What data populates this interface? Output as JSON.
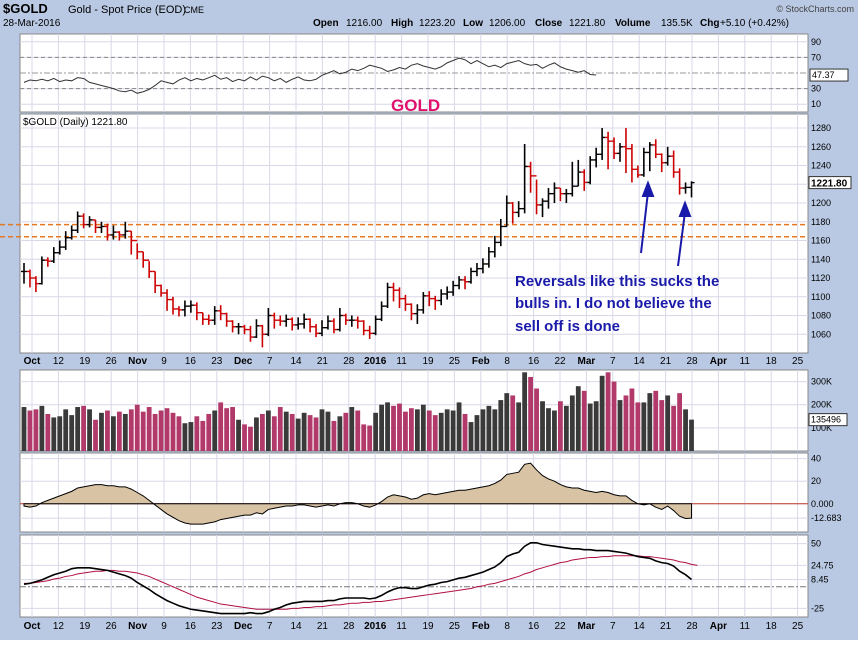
{
  "header": {
    "symbol": "$GOLD",
    "description": "Gold - Spot Price (EOD)",
    "exchange": "CME",
    "date": "28-Mar-2016",
    "watermark": "© StockCharts.com",
    "open_label": "Open",
    "open": "1216.00",
    "high_label": "High",
    "high": "1223.20",
    "low_label": "Low",
    "low": "1206.00",
    "close_label": "Close",
    "close": "1221.80",
    "volume_label": "Volume",
    "volume": "135.5K",
    "chg_label": "Chg",
    "chg": "+5.10 (+0.42%)"
  },
  "annotations": {
    "title": "GOLD",
    "note_lines": [
      "Reversals like this sucks the",
      "bulls in.  I do not believe the",
      "sell off is done"
    ]
  },
  "colors": {
    "background": "#ffffff",
    "panel_bg": "#ffffff",
    "frame_bg": "#b9c9e3",
    "grid": "#d8d8e8",
    "up": "#000000",
    "down": "#cc0000",
    "support_line": "#e87722",
    "annotation_text": "#1a1aaa",
    "title_color": "#e0106e",
    "vol_up": "#3a3a3a",
    "vol_down": "#b23a6a",
    "fill_tan": "#d9c3a5"
  },
  "chart_data": [
    {
      "id": "rsi",
      "type": "line",
      "tick_labels": [
        "90",
        "70",
        "30",
        "10"
      ],
      "ticks": [
        90,
        70,
        30,
        10
      ],
      "last_label": "47.37",
      "last": 47.37,
      "ylim": [
        0,
        100
      ],
      "levels": [
        70,
        30
      ],
      "values": [
        38,
        41,
        40,
        42,
        40,
        43,
        39,
        41,
        40,
        44,
        43,
        38,
        36,
        34,
        32,
        30,
        27,
        26,
        28,
        24,
        26,
        29,
        34,
        40,
        38,
        36,
        41,
        44,
        40,
        43,
        41,
        44,
        47,
        42,
        44,
        39,
        42,
        40,
        45,
        41,
        46,
        44,
        40,
        43,
        38,
        42,
        45,
        41,
        40,
        42,
        47,
        50,
        53,
        49,
        51,
        55,
        53,
        56,
        60,
        58,
        56,
        52,
        54,
        57,
        55,
        60,
        62,
        59,
        57,
        55,
        58,
        63,
        66,
        69,
        67,
        62,
        66,
        62,
        58,
        60,
        57,
        62,
        64,
        66,
        62,
        60,
        61,
        56,
        60,
        63,
        58,
        55,
        53,
        51,
        53,
        48,
        47.37
      ]
    },
    {
      "id": "price",
      "type": "ohlc",
      "legend": "$GOLD (Daily) 1221.80",
      "tick_labels": [
        "1280",
        "1260",
        "1240",
        "1220",
        "1200",
        "1180",
        "1160",
        "1140",
        "1120",
        "1100",
        "1080",
        "1060"
      ],
      "ticks": [
        1280,
        1260,
        1240,
        1220,
        1200,
        1180,
        1160,
        1140,
        1120,
        1100,
        1080,
        1060
      ],
      "last_label": "1221.80",
      "last": 1221.8,
      "ylim": [
        1040,
        1295
      ],
      "support_levels": [
        1177,
        1164
      ],
      "x_labels": [
        "Oct",
        "12",
        "19",
        "26",
        "Nov",
        "9",
        "16",
        "23",
        "Dec",
        "7",
        "14",
        "21",
        "28",
        "2016",
        "11",
        "19",
        "25",
        "Feb",
        "8",
        "16",
        "22",
        "Mar",
        "7",
        "14",
        "21",
        "28",
        "Apr",
        "11",
        "18",
        "25"
      ],
      "x_label_bold": [
        "Oct",
        "Nov",
        "Dec",
        "2016",
        "Feb",
        "Mar",
        "Apr"
      ],
      "close": [
        1127,
        1120,
        1114,
        1139,
        1138,
        1147,
        1153,
        1163,
        1171,
        1186,
        1177,
        1182,
        1174,
        1175,
        1166,
        1169,
        1166,
        1170,
        1160,
        1148,
        1139,
        1127,
        1112,
        1104,
        1097,
        1087,
        1086,
        1090,
        1091,
        1083,
        1076,
        1075,
        1085,
        1082,
        1074,
        1068,
        1068,
        1065,
        1057,
        1069,
        1060,
        1080,
        1075,
        1074,
        1076,
        1070,
        1071,
        1076,
        1068,
        1061,
        1067,
        1074,
        1065,
        1080,
        1075,
        1075,
        1074,
        1064,
        1061,
        1076,
        1090,
        1110,
        1107,
        1098,
        1092,
        1082,
        1086,
        1101,
        1098,
        1096,
        1103,
        1105,
        1112,
        1118,
        1116,
        1127,
        1130,
        1135,
        1148,
        1158,
        1175,
        1200,
        1190,
        1194,
        1239,
        1229,
        1198,
        1202,
        1210,
        1216,
        1210,
        1210,
        1218,
        1233,
        1222,
        1246,
        1252,
        1270,
        1266,
        1253,
        1260,
        1258,
        1236,
        1230,
        1254,
        1262,
        1252,
        1243,
        1250,
        1233,
        1216,
        1216.7,
        1221.8
      ],
      "high": [
        1136,
        1129,
        1122,
        1143,
        1142,
        1153,
        1160,
        1170,
        1176,
        1191,
        1189,
        1186,
        1182,
        1180,
        1178,
        1176,
        1170,
        1180,
        1170,
        1157,
        1148,
        1138,
        1127,
        1113,
        1108,
        1100,
        1090,
        1096,
        1096,
        1094,
        1083,
        1081,
        1090,
        1091,
        1083,
        1075,
        1072,
        1070,
        1069,
        1076,
        1070,
        1088,
        1083,
        1080,
        1081,
        1078,
        1078,
        1082,
        1077,
        1071,
        1075,
        1080,
        1077,
        1088,
        1082,
        1080,
        1079,
        1075,
        1069,
        1080,
        1095,
        1115,
        1115,
        1110,
        1102,
        1093,
        1092,
        1105,
        1106,
        1101,
        1108,
        1111,
        1117,
        1122,
        1122,
        1131,
        1136,
        1141,
        1153,
        1165,
        1183,
        1208,
        1201,
        1202,
        1263,
        1244,
        1225,
        1205,
        1216,
        1222,
        1216,
        1215,
        1244,
        1246,
        1236,
        1250,
        1259,
        1280,
        1276,
        1270,
        1264,
        1280,
        1263,
        1240,
        1259,
        1265,
        1268,
        1253,
        1260,
        1256,
        1237,
        1222,
        1223.2
      ],
      "low": [
        1114,
        1110,
        1105,
        1113,
        1132,
        1136,
        1145,
        1150,
        1161,
        1168,
        1173,
        1174,
        1168,
        1168,
        1160,
        1161,
        1160,
        1162,
        1145,
        1140,
        1131,
        1120,
        1104,
        1100,
        1085,
        1081,
        1079,
        1079,
        1083,
        1075,
        1070,
        1070,
        1070,
        1075,
        1068,
        1062,
        1060,
        1060,
        1052,
        1056,
        1046,
        1058,
        1066,
        1069,
        1068,
        1064,
        1065,
        1066,
        1062,
        1057,
        1058,
        1065,
        1061,
        1063,
        1070,
        1068,
        1066,
        1059,
        1055,
        1059,
        1074,
        1088,
        1095,
        1088,
        1085,
        1075,
        1071,
        1082,
        1090,
        1086,
        1091,
        1097,
        1101,
        1108,
        1108,
        1114,
        1122,
        1125,
        1131,
        1142,
        1154,
        1175,
        1178,
        1185,
        1189,
        1211,
        1188,
        1185,
        1194,
        1200,
        1202,
        1200,
        1207,
        1218,
        1213,
        1220,
        1238,
        1246,
        1236,
        1247,
        1244,
        1232,
        1222,
        1227,
        1228,
        1234,
        1248,
        1233,
        1240,
        1227,
        1209,
        1210,
        1206
      ]
    },
    {
      "id": "volume",
      "type": "bar",
      "tick_labels": [
        "300K",
        "200K",
        "100K"
      ],
      "ticks": [
        300,
        200,
        100
      ],
      "last_label": "135496",
      "last": 135.496,
      "ylim": [
        0,
        350
      ],
      "values": [
        190,
        175,
        180,
        195,
        160,
        145,
        150,
        180,
        155,
        190,
        195,
        180,
        135,
        165,
        175,
        150,
        170,
        160,
        180,
        200,
        170,
        190,
        160,
        175,
        185,
        165,
        150,
        120,
        125,
        150,
        130,
        160,
        175,
        210,
        185,
        190,
        135,
        115,
        105,
        145,
        160,
        175,
        150,
        190,
        170,
        160,
        140,
        165,
        155,
        145,
        180,
        170,
        130,
        150,
        165,
        190,
        175,
        115,
        110,
        165,
        200,
        210,
        195,
        205,
        170,
        185,
        180,
        200,
        175,
        155,
        165,
        180,
        175,
        210,
        160,
        125,
        155,
        180,
        195,
        180,
        220,
        250,
        240,
        210,
        340,
        320,
        270,
        215,
        185,
        175,
        215,
        195,
        240,
        280,
        260,
        205,
        215,
        325,
        340,
        300,
        220,
        240,
        270,
        210,
        210,
        250,
        260,
        220,
        240,
        195,
        250,
        180,
        135.5
      ]
    },
    {
      "id": "histogram",
      "type": "area",
      "tick_labels": [
        "40",
        "20",
        "0.000",
        "-12.683"
      ],
      "ticks": [
        40,
        20,
        0,
        -12.683
      ],
      "last_label": "-12.683",
      "last": -12.683,
      "zero_label": "0.000",
      "ylim": [
        -25,
        45
      ],
      "values": [
        -2,
        -3,
        -2,
        1,
        3,
        5,
        7,
        9,
        11,
        14,
        15,
        16,
        17,
        17,
        16,
        16,
        15,
        15,
        13,
        10,
        7,
        3,
        -1,
        -5,
        -9,
        -12,
        -15,
        -17,
        -18,
        -18,
        -18,
        -17,
        -16,
        -14,
        -13,
        -12,
        -11,
        -10,
        -10,
        -8,
        -9,
        -5,
        -4,
        -3,
        -2,
        -2,
        -1,
        -1,
        -2,
        -3,
        -2,
        -1,
        -2,
        0,
        1,
        1,
        0,
        -2,
        -3,
        -1,
        2,
        6,
        8,
        7,
        6,
        4,
        5,
        8,
        9,
        8,
        9,
        10,
        11,
        12,
        12,
        13,
        14,
        15,
        16,
        18,
        21,
        26,
        27,
        28,
        35,
        36,
        30,
        25,
        22,
        20,
        17,
        15,
        14,
        14,
        12,
        11,
        10,
        11,
        10,
        8,
        7,
        7,
        3,
        0,
        -1,
        0,
        -3,
        -5,
        -2,
        -6,
        -11,
        -13,
        -12.683
      ]
    },
    {
      "id": "macd",
      "type": "line",
      "tick_labels": [
        "50",
        "24.75",
        "8.45",
        "-25"
      ],
      "ticks": [
        50,
        24.75,
        8.45,
        -25
      ],
      "macd_label": "8.45",
      "signal_label": "24.75",
      "ylim": [
        -35,
        60
      ],
      "macd": [
        3,
        4,
        6,
        8,
        11,
        14,
        16,
        18,
        21,
        22,
        22,
        22,
        21,
        20,
        19,
        17,
        15,
        13,
        10,
        5,
        1,
        -3,
        -8,
        -12,
        -16,
        -19,
        -22,
        -24,
        -26,
        -27,
        -28,
        -29,
        -30,
        -31,
        -31,
        -31,
        -31,
        -31,
        -30,
        -31,
        -31,
        -29,
        -26,
        -24,
        -21,
        -19,
        -18,
        -17,
        -17,
        -17,
        -17,
        -16,
        -16,
        -14,
        -13,
        -13,
        -13,
        -13,
        -14,
        -13,
        -10,
        -6,
        -3,
        -1,
        -1,
        -2,
        -2,
        0,
        2,
        3,
        5,
        6,
        8,
        10,
        11,
        13,
        15,
        17,
        20,
        23,
        28,
        35,
        38,
        40,
        47,
        51,
        51,
        49,
        48,
        47,
        46,
        45,
        44,
        44,
        43,
        43,
        42,
        42,
        42,
        41,
        40,
        39,
        37,
        35,
        34,
        33,
        30,
        28,
        27,
        24,
        18,
        14,
        8.45
      ],
      "signal": [
        4,
        4,
        5,
        6,
        7,
        9,
        10,
        12,
        13,
        15,
        16,
        17,
        18,
        18,
        19,
        19,
        18,
        18,
        17,
        16,
        14,
        12,
        9,
        6,
        3,
        0,
        -3,
        -6,
        -9,
        -12,
        -14,
        -16,
        -18,
        -20,
        -21,
        -22,
        -23,
        -24,
        -25,
        -26,
        -26,
        -26,
        -26,
        -26,
        -26,
        -25,
        -25,
        -24,
        -24,
        -23,
        -23,
        -22,
        -21,
        -21,
        -20,
        -19,
        -19,
        -18,
        -18,
        -17,
        -17,
        -16,
        -15,
        -14,
        -13,
        -12,
        -11,
        -10,
        -9,
        -8,
        -7,
        -6,
        -5,
        -4,
        -3,
        -2,
        0,
        1,
        3,
        4,
        6,
        8,
        10,
        12,
        15,
        17,
        20,
        22,
        24,
        26,
        28,
        29,
        31,
        32,
        33,
        34,
        34,
        35,
        35,
        36,
        36,
        36,
        36,
        36,
        35,
        35,
        34,
        33,
        32,
        31,
        29,
        28,
        26,
        24.75
      ]
    }
  ]
}
